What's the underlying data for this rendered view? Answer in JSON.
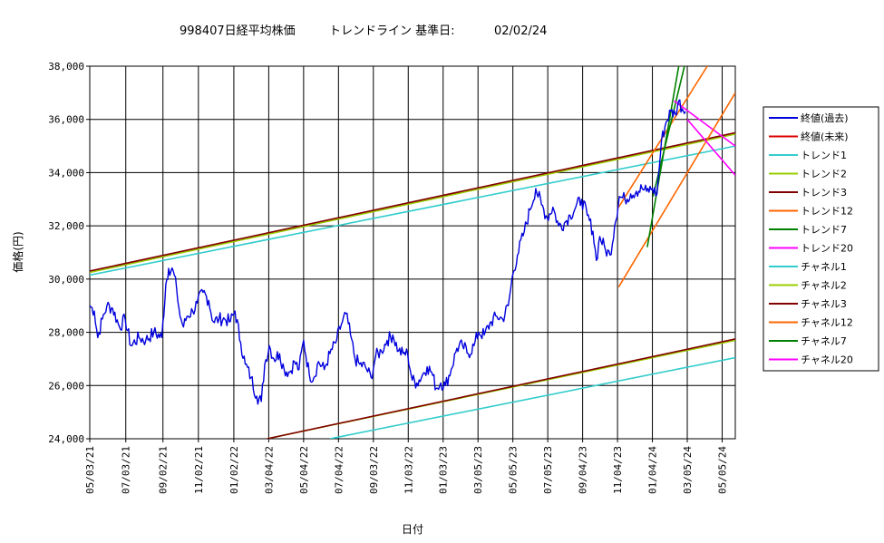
{
  "chart_data": {
    "type": "line",
    "title_main": "998407日経平均株価",
    "title_sub": "トレンドライン  基準日:",
    "title_date": "02/02/24",
    "xlabel": "日付",
    "ylabel": "価格(円)",
    "ylim": [
      24000,
      38000
    ],
    "xlim_days": [
      0,
      1129
    ],
    "y_ticks": [
      "24,000",
      "26,000",
      "28,000",
      "30,000",
      "32,000",
      "34,000",
      "36,000",
      "38,000"
    ],
    "y_tick_values": [
      24000,
      26000,
      28000,
      30000,
      32000,
      34000,
      36000,
      38000
    ],
    "x_ticks": [
      "05/03/21",
      "07/03/21",
      "09/02/21",
      "11/02/21",
      "01/02/22",
      "03/04/22",
      "05/04/22",
      "07/04/22",
      "09/03/22",
      "11/03/22",
      "01/03/23",
      "03/05/23",
      "05/05/23",
      "07/05/23",
      "09/04/23",
      "11/04/23",
      "01/04/24",
      "03/05/24",
      "05/05/24"
    ],
    "x_tick_days": [
      0,
      63,
      128,
      190,
      252,
      313,
      374,
      435,
      496,
      557,
      618,
      679,
      740,
      801,
      862,
      923,
      984,
      1045,
      1106
    ],
    "grid": true,
    "legend_position": "right",
    "series": [
      {
        "name": "終値(過去)",
        "color": "#0000dd",
        "kind": "price",
        "points": [
          [
            0,
            29000
          ],
          [
            8,
            28800
          ],
          [
            14,
            27800
          ],
          [
            22,
            28500
          ],
          [
            30,
            29000
          ],
          [
            40,
            28900
          ],
          [
            52,
            28200
          ],
          [
            62,
            28500
          ],
          [
            72,
            27500
          ],
          [
            86,
            27800
          ],
          [
            98,
            27700
          ],
          [
            112,
            28000
          ],
          [
            126,
            27800
          ],
          [
            133,
            29800
          ],
          [
            138,
            30400
          ],
          [
            146,
            30300
          ],
          [
            152,
            29600
          ],
          [
            158,
            28600
          ],
          [
            164,
            28200
          ],
          [
            170,
            28600
          ],
          [
            180,
            28800
          ],
          [
            188,
            29100
          ],
          [
            198,
            29500
          ],
          [
            208,
            29200
          ],
          [
            216,
            28400
          ],
          [
            226,
            28500
          ],
          [
            236,
            28500
          ],
          [
            246,
            28400
          ],
          [
            254,
            28800
          ],
          [
            264,
            27600
          ],
          [
            272,
            26800
          ],
          [
            282,
            26300
          ],
          [
            292,
            25600
          ],
          [
            300,
            25400
          ],
          [
            306,
            26800
          ],
          [
            314,
            27500
          ],
          [
            322,
            27000
          ],
          [
            332,
            27200
          ],
          [
            340,
            26600
          ],
          [
            350,
            26500
          ],
          [
            358,
            26900
          ],
          [
            366,
            26600
          ],
          [
            374,
            27700
          ],
          [
            384,
            26400
          ],
          [
            392,
            26300
          ],
          [
            400,
            26900
          ],
          [
            410,
            26600
          ],
          [
            420,
            27200
          ],
          [
            430,
            27600
          ],
          [
            440,
            28300
          ],
          [
            448,
            28700
          ],
          [
            456,
            27900
          ],
          [
            464,
            27000
          ],
          [
            472,
            26800
          ],
          [
            482,
            26700
          ],
          [
            492,
            26300
          ],
          [
            500,
            27100
          ],
          [
            510,
            27300
          ],
          [
            520,
            27700
          ],
          [
            530,
            27900
          ],
          [
            540,
            27300
          ],
          [
            548,
            27200
          ],
          [
            556,
            27200
          ],
          [
            564,
            26200
          ],
          [
            572,
            26100
          ],
          [
            582,
            26400
          ],
          [
            590,
            26700
          ],
          [
            598,
            26500
          ],
          [
            606,
            25900
          ],
          [
            614,
            26100
          ],
          [
            622,
            26000
          ],
          [
            632,
            26600
          ],
          [
            642,
            27400
          ],
          [
            652,
            27500
          ],
          [
            662,
            27200
          ],
          [
            672,
            27500
          ],
          [
            680,
            28000
          ],
          [
            690,
            27900
          ],
          [
            702,
            28400
          ],
          [
            712,
            28600
          ],
          [
            722,
            28500
          ],
          [
            732,
            29000
          ],
          [
            740,
            30200
          ],
          [
            748,
            30900
          ],
          [
            760,
            31800
          ],
          [
            770,
            32600
          ],
          [
            780,
            33400
          ],
          [
            790,
            32800
          ],
          [
            800,
            32300
          ],
          [
            810,
            32700
          ],
          [
            820,
            32000
          ],
          [
            830,
            32100
          ],
          [
            840,
            32400
          ],
          [
            850,
            32700
          ],
          [
            860,
            33000
          ],
          [
            870,
            32400
          ],
          [
            880,
            31800
          ],
          [
            886,
            30700
          ],
          [
            892,
            31600
          ],
          [
            902,
            31100
          ],
          [
            910,
            30900
          ],
          [
            918,
            32000
          ],
          [
            926,
            33100
          ],
          [
            936,
            33000
          ],
          [
            946,
            33200
          ],
          [
            956,
            33300
          ],
          [
            966,
            33400
          ],
          [
            974,
            33300
          ],
          [
            984,
            33400
          ],
          [
            992,
            33200
          ],
          [
            1000,
            35200
          ],
          [
            1008,
            35900
          ],
          [
            1016,
            36300
          ],
          [
            1024,
            36200
          ],
          [
            1030,
            36700
          ],
          [
            1036,
            36400
          ],
          [
            1042,
            36300
          ]
        ]
      },
      {
        "name": "終値(未来)",
        "color": "#dd0000",
        "kind": "price",
        "points": []
      },
      {
        "name": "トレンド1",
        "color": "#33cccc",
        "kind": "line",
        "points": [
          [
            0,
            30150
          ],
          [
            1129,
            35000
          ]
        ]
      },
      {
        "name": "トレンド2",
        "color": "#99cc00",
        "kind": "line",
        "points": [
          [
            0,
            30250
          ],
          [
            1129,
            35450
          ]
        ]
      },
      {
        "name": "トレンド3",
        "color": "#800000",
        "kind": "line",
        "points": [
          [
            0,
            30300
          ],
          [
            1129,
            35500
          ]
        ]
      },
      {
        "name": "トレンド12",
        "color": "#ff6600",
        "kind": "line",
        "points": [
          [
            925,
            32700
          ],
          [
            1080,
            38000
          ]
        ]
      },
      {
        "name": "トレンド7",
        "color": "#008000",
        "kind": "line",
        "points": [
          [
            985,
            33100
          ],
          [
            1040,
            38000
          ]
        ]
      },
      {
        "name": "トレンド20",
        "color": "#ff00ff",
        "kind": "line",
        "points": [
          [
            1022,
            36700
          ],
          [
            1129,
            35000
          ]
        ]
      },
      {
        "name": "チャネル1",
        "color": "#33cccc",
        "kind": "line",
        "points": [
          [
            420,
            24000
          ],
          [
            1129,
            27050
          ]
        ]
      },
      {
        "name": "チャネル2",
        "color": "#99cc00",
        "kind": "line",
        "points": [
          [
            310,
            24000
          ],
          [
            1129,
            27700
          ]
        ]
      },
      {
        "name": "チャネル3",
        "color": "#800000",
        "kind": "line",
        "points": [
          [
            310,
            24000
          ],
          [
            1129,
            27750
          ]
        ]
      },
      {
        "name": "チャネル12",
        "color": "#ff6600",
        "kind": "line",
        "points": [
          [
            925,
            29700
          ],
          [
            1129,
            37000
          ]
        ]
      },
      {
        "name": "チャネル7",
        "color": "#008000",
        "kind": "line",
        "points": [
          [
            975,
            31200
          ],
          [
            1030,
            38000
          ]
        ]
      },
      {
        "name": "チャネル20",
        "color": "#ff00ff",
        "kind": "line",
        "points": [
          [
            1045,
            36000
          ],
          [
            1129,
            33900
          ]
        ]
      }
    ]
  }
}
